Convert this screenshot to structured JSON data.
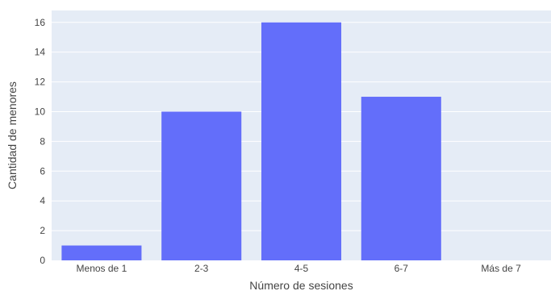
{
  "chart_data": {
    "type": "bar",
    "categories": [
      "Menos de 1",
      "2-3",
      "4-5",
      "6-7",
      "Más de 7"
    ],
    "values": [
      1,
      10,
      16,
      11,
      0
    ],
    "xlabel": "Número de sesiones",
    "ylabel": "Cantidad de menores",
    "ylim": [
      0,
      16.8
    ],
    "yticks": [
      0,
      2,
      4,
      6,
      8,
      10,
      12,
      14,
      16
    ],
    "grid": true,
    "colors": {
      "bar": "#636efa",
      "plot_bg": "#e5ecf6",
      "grid": "#ffffff",
      "text": "#444444"
    }
  }
}
